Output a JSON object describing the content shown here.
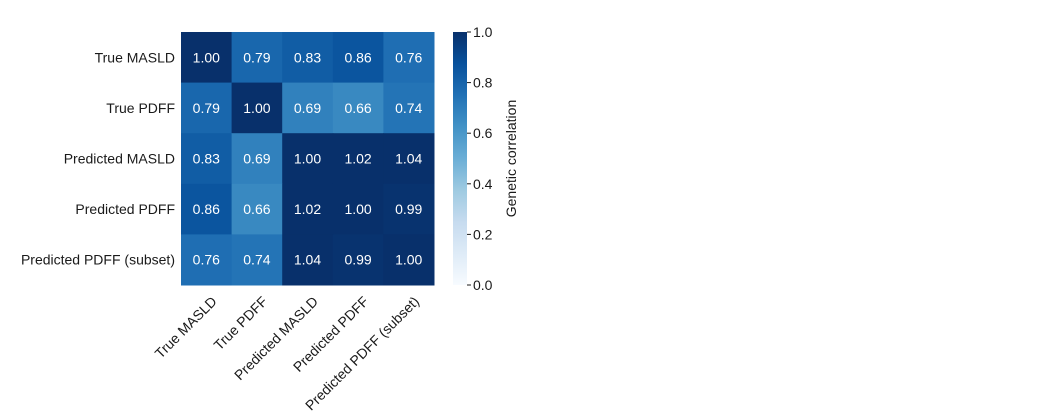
{
  "chart_data": {
    "type": "heatmap",
    "rows": [
      "True MASLD",
      "True PDFF",
      "Predicted MASLD",
      "Predicted PDFF",
      "Predicted PDFF (subset)"
    ],
    "columns": [
      "True MASLD",
      "True PDFF",
      "Predicted MASLD",
      "Predicted PDFF",
      "Predicted PDFF (subset)"
    ],
    "values": [
      [
        1.0,
        0.79,
        0.83,
        0.86,
        0.76
      ],
      [
        0.79,
        1.0,
        0.69,
        0.66,
        0.74
      ],
      [
        0.83,
        0.69,
        1.0,
        1.02,
        1.04
      ],
      [
        0.86,
        0.66,
        1.02,
        1.0,
        0.99
      ],
      [
        0.76,
        0.74,
        1.04,
        0.99,
        1.0
      ]
    ],
    "value_labels": [
      [
        "1.00",
        "0.79",
        "0.83",
        "0.86",
        "0.76"
      ],
      [
        "0.79",
        "1.00",
        "0.69",
        "0.66",
        "0.74"
      ],
      [
        "0.83",
        "0.69",
        "1.00",
        "1.02",
        "1.04"
      ],
      [
        "0.86",
        "0.66",
        "1.02",
        "1.00",
        "0.99"
      ],
      [
        "0.76",
        "0.74",
        "1.04",
        "0.99",
        "1.00"
      ]
    ],
    "colorbar": {
      "label": "Genetic correlation",
      "range": [
        0.0,
        1.0
      ],
      "ticks": [
        0.0,
        0.2,
        0.4,
        0.6,
        0.8,
        1.0
      ],
      "tick_labels": [
        "0.0",
        "0.2",
        "0.4",
        "0.6",
        "0.8",
        "1.0"
      ],
      "colormap": "Blues",
      "color_low": "#f7fbff",
      "color_high": "#08306b"
    },
    "x_tick_rotation_deg": 45
  }
}
